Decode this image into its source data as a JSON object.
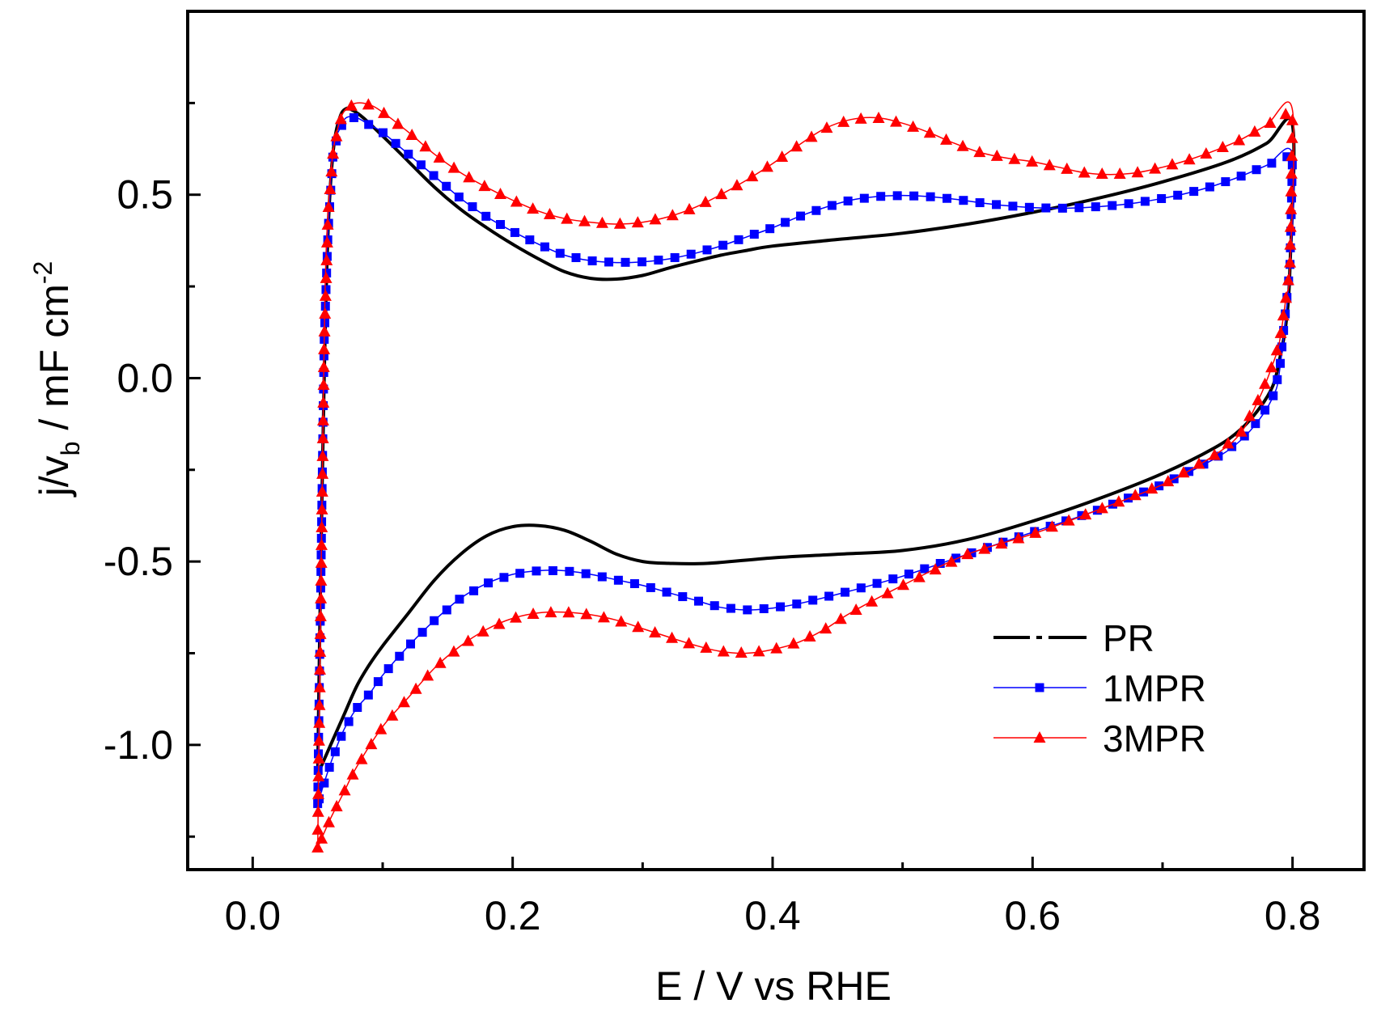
{
  "chart_data": {
    "type": "line",
    "title": "",
    "xlabel": "E / V vs RHE",
    "ylabel": {
      "prefix": "j/v",
      "sub": "b",
      "unit": " / mF cm",
      "sup": "-2"
    },
    "xlim": [
      -0.05,
      0.855
    ],
    "ylim": [
      -1.34,
      1.0
    ],
    "x_ticks": [
      {
        "value": 0.0,
        "label": "0.0"
      },
      {
        "value": 0.2,
        "label": "0.2"
      },
      {
        "value": 0.4,
        "label": "0.4"
      },
      {
        "value": 0.6,
        "label": "0.6"
      },
      {
        "value": 0.8,
        "label": "0.8"
      }
    ],
    "y_ticks": [
      {
        "value": 0.5,
        "label": "0.5"
      },
      {
        "value": 0.0,
        "label": "0.0"
      },
      {
        "value": -0.5,
        "label": "-0.5"
      },
      {
        "value": -1.0,
        "label": "-1.0"
      }
    ],
    "x_minor_ticks": [
      0.1,
      0.3,
      0.5,
      0.7
    ],
    "y_minor_ticks": [
      0.75,
      0.25,
      -0.25,
      -0.75,
      -1.25
    ],
    "legend_position": "bottom-right",
    "series": [
      {
        "name": "PR",
        "color": "#000000",
        "marker": "none",
        "anodic": [
          [
            0.05,
            -1.08
          ],
          [
            0.052,
            -0.6
          ],
          [
            0.055,
            0.0
          ],
          [
            0.058,
            0.4
          ],
          [
            0.062,
            0.62
          ],
          [
            0.067,
            0.71
          ],
          [
            0.072,
            0.735
          ],
          [
            0.077,
            0.73
          ],
          [
            0.085,
            0.71
          ],
          [
            0.1,
            0.66
          ],
          [
            0.12,
            0.59
          ],
          [
            0.14,
            0.52
          ],
          [
            0.16,
            0.46
          ],
          [
            0.18,
            0.41
          ],
          [
            0.2,
            0.365
          ],
          [
            0.22,
            0.325
          ],
          [
            0.24,
            0.29
          ],
          [
            0.26,
            0.272
          ],
          [
            0.28,
            0.27
          ],
          [
            0.3,
            0.28
          ],
          [
            0.32,
            0.3
          ],
          [
            0.34,
            0.318
          ],
          [
            0.36,
            0.335
          ],
          [
            0.38,
            0.348
          ],
          [
            0.4,
            0.36
          ],
          [
            0.45,
            0.378
          ],
          [
            0.5,
            0.395
          ],
          [
            0.55,
            0.42
          ],
          [
            0.6,
            0.452
          ],
          [
            0.65,
            0.49
          ],
          [
            0.7,
            0.535
          ],
          [
            0.75,
            0.59
          ],
          [
            0.78,
            0.64
          ],
          [
            0.8,
            0.69
          ]
        ],
        "cathodic": [
          [
            0.8,
            0.69
          ],
          [
            0.798,
            0.3
          ],
          [
            0.795,
            0.15
          ],
          [
            0.79,
            0.05
          ],
          [
            0.785,
            -0.02
          ],
          [
            0.775,
            -0.08
          ],
          [
            0.76,
            -0.14
          ],
          [
            0.74,
            -0.19
          ],
          [
            0.7,
            -0.26
          ],
          [
            0.65,
            -0.33
          ],
          [
            0.6,
            -0.39
          ],
          [
            0.55,
            -0.44
          ],
          [
            0.5,
            -0.47
          ],
          [
            0.45,
            -0.48
          ],
          [
            0.4,
            -0.49
          ],
          [
            0.35,
            -0.505
          ],
          [
            0.32,
            -0.505
          ],
          [
            0.3,
            -0.5
          ],
          [
            0.28,
            -0.48
          ],
          [
            0.26,
            -0.445
          ],
          [
            0.24,
            -0.415
          ],
          [
            0.22,
            -0.402
          ],
          [
            0.2,
            -0.405
          ],
          [
            0.18,
            -0.43
          ],
          [
            0.16,
            -0.48
          ],
          [
            0.14,
            -0.55
          ],
          [
            0.12,
            -0.64
          ],
          [
            0.1,
            -0.73
          ],
          [
            0.09,
            -0.78
          ],
          [
            0.08,
            -0.84
          ],
          [
            0.07,
            -0.92
          ],
          [
            0.06,
            -1.0
          ],
          [
            0.05,
            -1.08
          ]
        ]
      },
      {
        "name": "1MPR",
        "color": "#0000ff",
        "marker": "square",
        "anodic": [
          [
            0.05,
            -1.16
          ],
          [
            0.055,
            0.1
          ],
          [
            0.058,
            0.4
          ],
          [
            0.062,
            0.62
          ],
          [
            0.067,
            0.68
          ],
          [
            0.072,
            0.71
          ],
          [
            0.08,
            0.71
          ],
          [
            0.09,
            0.69
          ],
          [
            0.1,
            0.67
          ],
          [
            0.12,
            0.61
          ],
          [
            0.14,
            0.55
          ],
          [
            0.16,
            0.49
          ],
          [
            0.18,
            0.44
          ],
          [
            0.2,
            0.4
          ],
          [
            0.22,
            0.365
          ],
          [
            0.24,
            0.335
          ],
          [
            0.26,
            0.32
          ],
          [
            0.28,
            0.315
          ],
          [
            0.3,
            0.317
          ],
          [
            0.32,
            0.325
          ],
          [
            0.34,
            0.34
          ],
          [
            0.36,
            0.36
          ],
          [
            0.38,
            0.385
          ],
          [
            0.4,
            0.41
          ],
          [
            0.42,
            0.44
          ],
          [
            0.44,
            0.465
          ],
          [
            0.46,
            0.485
          ],
          [
            0.48,
            0.495
          ],
          [
            0.5,
            0.498
          ],
          [
            0.52,
            0.495
          ],
          [
            0.54,
            0.488
          ],
          [
            0.56,
            0.478
          ],
          [
            0.58,
            0.47
          ],
          [
            0.6,
            0.465
          ],
          [
            0.62,
            0.463
          ],
          [
            0.64,
            0.465
          ],
          [
            0.66,
            0.47
          ],
          [
            0.68,
            0.478
          ],
          [
            0.7,
            0.49
          ],
          [
            0.72,
            0.505
          ],
          [
            0.74,
            0.525
          ],
          [
            0.76,
            0.55
          ],
          [
            0.78,
            0.58
          ],
          [
            0.8,
            0.61
          ]
        ],
        "cathodic": [
          [
            0.8,
            0.61
          ],
          [
            0.798,
            0.3
          ],
          [
            0.79,
            0.02
          ],
          [
            0.785,
            -0.05
          ],
          [
            0.775,
            -0.11
          ],
          [
            0.76,
            -0.17
          ],
          [
            0.74,
            -0.22
          ],
          [
            0.7,
            -0.29
          ],
          [
            0.65,
            -0.36
          ],
          [
            0.6,
            -0.42
          ],
          [
            0.55,
            -0.48
          ],
          [
            0.5,
            -0.54
          ],
          [
            0.46,
            -0.58
          ],
          [
            0.42,
            -0.615
          ],
          [
            0.4,
            -0.627
          ],
          [
            0.38,
            -0.632
          ],
          [
            0.36,
            -0.625
          ],
          [
            0.34,
            -0.605
          ],
          [
            0.32,
            -0.585
          ],
          [
            0.3,
            -0.565
          ],
          [
            0.28,
            -0.55
          ],
          [
            0.26,
            -0.535
          ],
          [
            0.24,
            -0.525
          ],
          [
            0.22,
            -0.525
          ],
          [
            0.2,
            -0.535
          ],
          [
            0.18,
            -0.56
          ],
          [
            0.16,
            -0.6
          ],
          [
            0.14,
            -0.66
          ],
          [
            0.12,
            -0.73
          ],
          [
            0.1,
            -0.81
          ],
          [
            0.09,
            -0.86
          ],
          [
            0.08,
            -0.9
          ],
          [
            0.07,
            -0.96
          ],
          [
            0.06,
            -1.05
          ],
          [
            0.05,
            -1.16
          ]
        ]
      },
      {
        "name": "3MPR",
        "color": "#ff0000",
        "marker": "triangle",
        "anodic": [
          [
            0.05,
            -1.28
          ],
          [
            0.055,
            0.1
          ],
          [
            0.058,
            0.45
          ],
          [
            0.062,
            0.62
          ],
          [
            0.067,
            0.7
          ],
          [
            0.072,
            0.735
          ],
          [
            0.08,
            0.75
          ],
          [
            0.09,
            0.745
          ],
          [
            0.1,
            0.725
          ],
          [
            0.12,
            0.67
          ],
          [
            0.14,
            0.61
          ],
          [
            0.16,
            0.56
          ],
          [
            0.18,
            0.52
          ],
          [
            0.2,
            0.485
          ],
          [
            0.22,
            0.455
          ],
          [
            0.24,
            0.435
          ],
          [
            0.26,
            0.425
          ],
          [
            0.28,
            0.42
          ],
          [
            0.3,
            0.425
          ],
          [
            0.32,
            0.44
          ],
          [
            0.34,
            0.465
          ],
          [
            0.36,
            0.5
          ],
          [
            0.38,
            0.54
          ],
          [
            0.4,
            0.585
          ],
          [
            0.42,
            0.635
          ],
          [
            0.44,
            0.68
          ],
          [
            0.46,
            0.705
          ],
          [
            0.48,
            0.71
          ],
          [
            0.5,
            0.695
          ],
          [
            0.52,
            0.67
          ],
          [
            0.54,
            0.64
          ],
          [
            0.56,
            0.615
          ],
          [
            0.58,
            0.6
          ],
          [
            0.6,
            0.59
          ],
          [
            0.62,
            0.575
          ],
          [
            0.64,
            0.56
          ],
          [
            0.66,
            0.555
          ],
          [
            0.68,
            0.56
          ],
          [
            0.7,
            0.575
          ],
          [
            0.72,
            0.595
          ],
          [
            0.74,
            0.62
          ],
          [
            0.76,
            0.65
          ],
          [
            0.78,
            0.69
          ],
          [
            0.8,
            0.73
          ]
        ],
        "cathodic": [
          [
            0.8,
            0.73
          ],
          [
            0.798,
            0.3
          ],
          [
            0.795,
            0.22
          ],
          [
            0.79,
            0.1
          ],
          [
            0.785,
            0.04
          ],
          [
            0.775,
            -0.05
          ],
          [
            0.76,
            -0.15
          ],
          [
            0.74,
            -0.21
          ],
          [
            0.7,
            -0.29
          ],
          [
            0.65,
            -0.36
          ],
          [
            0.6,
            -0.425
          ],
          [
            0.55,
            -0.48
          ],
          [
            0.5,
            -0.565
          ],
          [
            0.46,
            -0.64
          ],
          [
            0.44,
            -0.685
          ],
          [
            0.42,
            -0.72
          ],
          [
            0.4,
            -0.74
          ],
          [
            0.38,
            -0.75
          ],
          [
            0.36,
            -0.745
          ],
          [
            0.34,
            -0.728
          ],
          [
            0.32,
            -0.706
          ],
          [
            0.3,
            -0.683
          ],
          [
            0.28,
            -0.66
          ],
          [
            0.26,
            -0.645
          ],
          [
            0.24,
            -0.638
          ],
          [
            0.22,
            -0.64
          ],
          [
            0.2,
            -0.655
          ],
          [
            0.18,
            -0.685
          ],
          [
            0.16,
            -0.73
          ],
          [
            0.14,
            -0.79
          ],
          [
            0.12,
            -0.87
          ],
          [
            0.1,
            -0.95
          ],
          [
            0.08,
            -1.06
          ],
          [
            0.07,
            -1.13
          ],
          [
            0.06,
            -1.2
          ],
          [
            0.05,
            -1.28
          ]
        ]
      }
    ]
  }
}
